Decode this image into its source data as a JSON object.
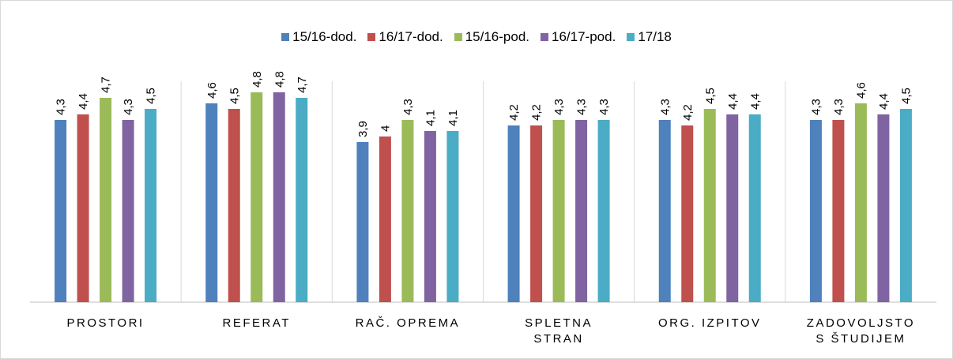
{
  "chart_data": {
    "type": "bar",
    "categories": [
      "PROSTORI",
      "REFERAT",
      "RAČ. OPREMA",
      "SPLETNA STRAN",
      "ORG. IZPITOV",
      "ZADOVOLJSTO S ŠTUDIJEM"
    ],
    "series": [
      {
        "name": "15/16-dod.",
        "color": "#4f81bd",
        "values": [
          4.3,
          4.6,
          3.9,
          4.2,
          4.3,
          4.3
        ],
        "value_labels": [
          "4,3",
          "4,6",
          "3,9",
          "4,2",
          "4,3",
          "4,3"
        ]
      },
      {
        "name": "16/17-dod.",
        "color": "#c0504d",
        "values": [
          4.4,
          4.5,
          4,
          4.2,
          4.2,
          4.3
        ],
        "value_labels": [
          "4,4",
          "4,5",
          "4",
          "4,2",
          "4,2",
          "4,3"
        ]
      },
      {
        "name": "15/16-pod.",
        "color": "#9bbb59",
        "values": [
          4.7,
          4.8,
          4.3,
          4.3,
          4.5,
          4.6
        ],
        "value_labels": [
          "4,7",
          "4,8",
          "4,3",
          "4,3",
          "4,5",
          "4,6"
        ]
      },
      {
        "name": "16/17-pod.",
        "color": "#8064a2",
        "values": [
          4.3,
          4.8,
          4.1,
          4.3,
          4.4,
          4.4
        ],
        "value_labels": [
          "4,3",
          "4,8",
          "4,1",
          "4,3",
          "4,4",
          "4,4"
        ]
      },
      {
        "name": "17/18",
        "color": "#4bacc6",
        "values": [
          4.5,
          4.7,
          4.1,
          4.3,
          4.4,
          4.5
        ],
        "value_labels": [
          "4,5",
          "4,7",
          "4,1",
          "4,3",
          "4,4",
          "4,5"
        ]
      }
    ],
    "ylim": [
      1,
      5
    ],
    "legend": "top"
  }
}
